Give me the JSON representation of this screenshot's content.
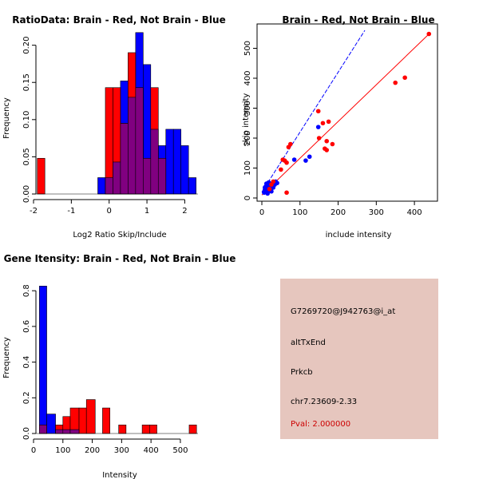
{
  "colors": {
    "brain": "#ff0000",
    "not_brain": "#0000ff",
    "overlap": "#800080",
    "panel_bg": "#e6c6be",
    "pval": "#cc0000"
  },
  "chart_data": [
    {
      "id": "ratio",
      "type": "bar",
      "subtype": "overlapping-histogram",
      "title": "RatioData: Brain - Red, Not Brain - Blue",
      "xlabel": "Log2 Ratio Skip/Include",
      "ylabel": "Frequency",
      "xlim": [
        -2,
        2.35
      ],
      "ylim": [
        0,
        0.22
      ],
      "xticks": [
        -2,
        -1,
        0,
        1,
        2
      ],
      "yticks": [
        0.0,
        0.05,
        0.1,
        0.15,
        0.2
      ],
      "ytick_labels": [
        "0.00",
        "0.05",
        "0.10",
        "0.15",
        "0.20"
      ],
      "series": [
        {
          "name": "Not Brain",
          "color": "#0000ff",
          "bins": [
            {
              "x0": -0.3,
              "x1": -0.1,
              "value": 0.022
            },
            {
              "x0": -0.1,
              "x1": 0.1,
              "value": 0.022
            },
            {
              "x0": 0.1,
              "x1": 0.3,
              "value": 0.043
            },
            {
              "x0": 0.3,
              "x1": 0.5,
              "value": 0.152
            },
            {
              "x0": 0.5,
              "x1": 0.7,
              "value": 0.13
            },
            {
              "x0": 0.7,
              "x1": 0.9,
              "value": 0.217
            },
            {
              "x0": 0.9,
              "x1": 1.1,
              "value": 0.174
            },
            {
              "x0": 1.1,
              "x1": 1.3,
              "value": 0.087
            },
            {
              "x0": 1.3,
              "x1": 1.5,
              "value": 0.065
            },
            {
              "x0": 1.5,
              "x1": 1.7,
              "value": 0.087
            },
            {
              "x0": 1.7,
              "x1": 1.9,
              "value": 0.087
            },
            {
              "x0": 1.9,
              "x1": 2.1,
              "value": 0.065
            },
            {
              "x0": 2.1,
              "x1": 2.3,
              "value": 0.022
            }
          ]
        },
        {
          "name": "Brain",
          "color": "#ff0000",
          "bins": [
            {
              "x0": -1.9,
              "x1": -1.7,
              "value": 0.048
            },
            {
              "x0": -0.1,
              "x1": 0.1,
              "value": 0.143
            },
            {
              "x0": 0.1,
              "x1": 0.3,
              "value": 0.143
            },
            {
              "x0": 0.3,
              "x1": 0.5,
              "value": 0.095
            },
            {
              "x0": 0.5,
              "x1": 0.7,
              "value": 0.19
            },
            {
              "x0": 0.7,
              "x1": 0.9,
              "value": 0.143
            },
            {
              "x0": 0.9,
              "x1": 1.1,
              "value": 0.048
            },
            {
              "x0": 1.1,
              "x1": 1.3,
              "value": 0.143
            },
            {
              "x0": 1.3,
              "x1": 1.5,
              "value": 0.048
            }
          ]
        }
      ]
    },
    {
      "id": "scatter",
      "type": "scatter",
      "title": "Brain - Red, Not Brain - Blue",
      "xlabel": "include intensity",
      "ylabel": "skip intensity",
      "xlim": [
        0,
        450
      ],
      "ylim": [
        0,
        560
      ],
      "xticks": [
        0,
        100,
        200,
        300,
        400
      ],
      "yticks": [
        0,
        100,
        200,
        300,
        400,
        500
      ],
      "series": [
        {
          "name": "Not Brain",
          "color": "#0000ff",
          "points": [
            [
              6,
              18
            ],
            [
              8,
              28
            ],
            [
              10,
              22
            ],
            [
              12,
              35
            ],
            [
              14,
              30
            ],
            [
              16,
              40
            ],
            [
              18,
              25
            ],
            [
              20,
              45
            ],
            [
              22,
              38
            ],
            [
              24,
              30
            ],
            [
              26,
              48
            ],
            [
              28,
              42
            ],
            [
              30,
              35
            ],
            [
              32,
              52
            ],
            [
              34,
              45
            ],
            [
              36,
              55
            ],
            [
              12,
              48
            ],
            [
              18,
              52
            ],
            [
              10,
              38
            ],
            [
              25,
              22
            ],
            [
              15,
              15
            ],
            [
              8,
              35
            ],
            [
              40,
              50
            ],
            [
              85,
              128
            ],
            [
              115,
              125
            ],
            [
              125,
              138
            ],
            [
              148,
              237
            ]
          ],
          "fit_line": [
            [
              0,
              20
            ],
            [
              270,
              560
            ]
          ]
        },
        {
          "name": "Brain",
          "color": "#ff0000",
          "points": [
            [
              20,
              30
            ],
            [
              25,
              45
            ],
            [
              30,
              55
            ],
            [
              50,
              95
            ],
            [
              55,
              128
            ],
            [
              60,
              125
            ],
            [
              65,
              118
            ],
            [
              70,
              170
            ],
            [
              75,
              180
            ],
            [
              65,
              18
            ],
            [
              148,
              290
            ],
            [
              150,
              200
            ],
            [
              165,
              165
            ],
            [
              170,
              190
            ],
            [
              175,
              255
            ],
            [
              160,
              250
            ],
            [
              185,
              180
            ],
            [
              170,
              160
            ],
            [
              350,
              385
            ],
            [
              375,
              402
            ],
            [
              438,
              548
            ]
          ],
          "fit_line": [
            [
              0,
              10
            ],
            [
              440,
              550
            ]
          ]
        }
      ]
    },
    {
      "id": "intensity",
      "type": "bar",
      "subtype": "overlapping-histogram",
      "title": "Gene Itensity: Brain - Red, Not Brain - Blue",
      "xlabel": "Intensity",
      "ylabel": "Frequency",
      "xlim": [
        0,
        560
      ],
      "ylim": [
        0,
        0.85
      ],
      "xticks": [
        0,
        100,
        200,
        300,
        400,
        500
      ],
      "yticks": [
        0.0,
        0.2,
        0.4,
        0.6,
        0.8
      ],
      "ytick_labels": [
        "0.0",
        "0.2",
        "0.4",
        "0.6",
        "0.8"
      ],
      "series": [
        {
          "name": "Not Brain",
          "color": "#0000ff",
          "bins": [
            {
              "x0": 20,
              "x1": 45,
              "value": 0.826
            },
            {
              "x0": 45,
              "x1": 75,
              "value": 0.109
            },
            {
              "x0": 75,
              "x1": 100,
              "value": 0.022
            },
            {
              "x0": 100,
              "x1": 125,
              "value": 0.022
            },
            {
              "x0": 125,
              "x1": 155,
              "value": 0.022
            }
          ]
        },
        {
          "name": "Brain",
          "color": "#ff0000",
          "bins": [
            {
              "x0": 20,
              "x1": 45,
              "value": 0.048
            },
            {
              "x0": 75,
              "x1": 100,
              "value": 0.048
            },
            {
              "x0": 100,
              "x1": 125,
              "value": 0.095
            },
            {
              "x0": 125,
              "x1": 155,
              "value": 0.143
            },
            {
              "x0": 155,
              "x1": 180,
              "value": 0.143
            },
            {
              "x0": 180,
              "x1": 210,
              "value": 0.19
            },
            {
              "x0": 235,
              "x1": 260,
              "value": 0.143
            },
            {
              "x0": 290,
              "x1": 315,
              "value": 0.048
            },
            {
              "x0": 370,
              "x1": 395,
              "value": 0.048
            },
            {
              "x0": 395,
              "x1": 420,
              "value": 0.048
            },
            {
              "x0": 530,
              "x1": 555,
              "value": 0.048
            }
          ]
        }
      ]
    }
  ],
  "info": {
    "probe_id": "G7269720@J942763@i_at",
    "event_type": "altTxEnd",
    "gene": "Prkcb",
    "location": "chr7.23609-2.33",
    "pval": "Pval: 2.000000"
  }
}
